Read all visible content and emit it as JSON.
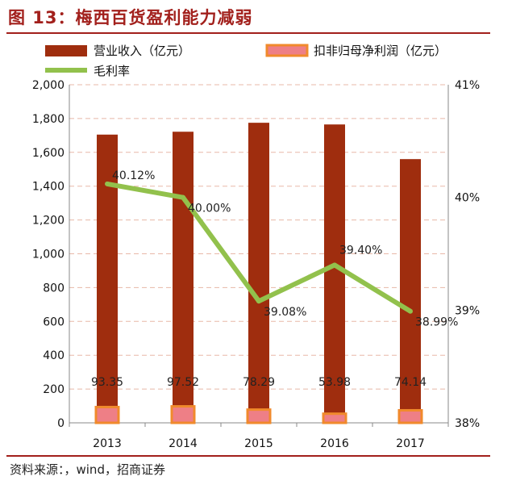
{
  "header": {
    "title": "图 13：梅西百货盈利能力减弱"
  },
  "footer": {
    "source": "资料来源：，wind，招商证券"
  },
  "colors": {
    "revenue": "#9f2d0e",
    "profit_fill": "#ee7f86",
    "profit_border": "#f08a2c",
    "margin": "#92c14c",
    "grid": "#e8b8a8",
    "accent": "#a2201c"
  },
  "chart_data": {
    "type": "bar",
    "categories": [
      "2013",
      "2014",
      "2015",
      "2016",
      "2017"
    ],
    "series": [
      {
        "name": "营业收入（亿元）",
        "type": "bar",
        "axis": "left",
        "values": [
          1705,
          1722,
          1775,
          1765,
          1560
        ]
      },
      {
        "name": "扣非归母净利润（亿元）",
        "type": "bar",
        "axis": "left",
        "values": [
          93.35,
          97.52,
          78.29,
          53.98,
          74.14
        ],
        "labels": [
          "93.35",
          "97.52",
          "78.29",
          "53.98",
          "74.14"
        ]
      },
      {
        "name": "毛利率",
        "type": "line",
        "axis": "right",
        "values": [
          40.12,
          40.0,
          39.08,
          39.4,
          38.99
        ],
        "labels": [
          "40.12%",
          "40.00%",
          "39.08%",
          "39.40%",
          "38.99%"
        ]
      }
    ],
    "y_left": {
      "min": 0,
      "max": 2000,
      "ticks": [
        "0",
        "200",
        "400",
        "600",
        "800",
        "1,000",
        "1,200",
        "1,400",
        "1,600",
        "1,800",
        "2,000"
      ]
    },
    "y_right": {
      "min": 38,
      "max": 41,
      "ticks": [
        "38%",
        "39%",
        "40%",
        "41%"
      ]
    },
    "legend_position": "top",
    "grid": true
  }
}
